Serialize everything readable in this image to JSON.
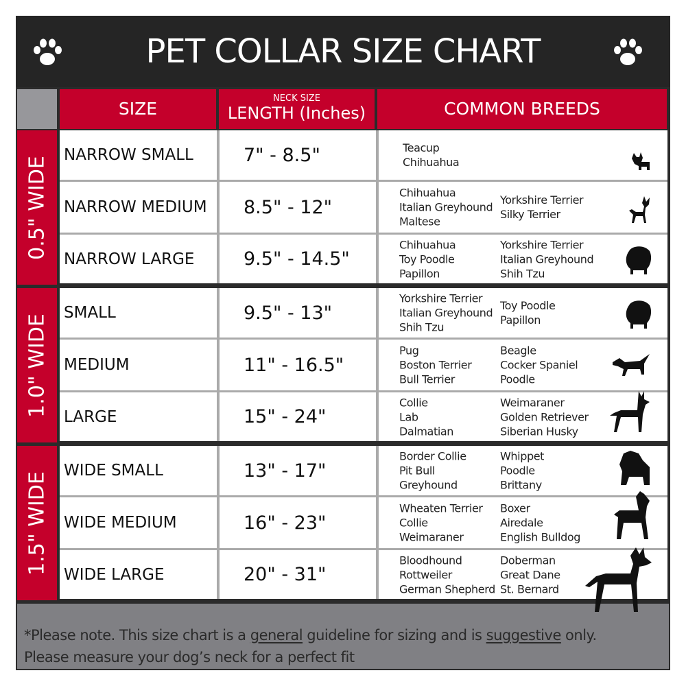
{
  "title": "PET COLLAR SIZE CHART",
  "header": {
    "size": "SIZE",
    "neck_size": "NECK SIZE",
    "length": "LENGTH (Inches)",
    "breeds": "COMMON BREEDS"
  },
  "colors": {
    "red": "#c4002b",
    "dark": "#252525",
    "gray": "#808084"
  },
  "groups": [
    {
      "label": "0.5\" WIDE",
      "rows": [
        {
          "size": "NARROW SMALL",
          "length": "7\" - 8.5\"",
          "breeds1": [
            "Teacup",
            "Chihuahua"
          ],
          "breeds2": [],
          "icon": "yorkie-silhouette-icon"
        },
        {
          "size": "NARROW MEDIUM",
          "length": "8.5\" - 12\"",
          "breeds1": [
            "Chihuahua",
            "Italian Greyhound",
            "Maltese"
          ],
          "breeds2": [
            "Yorkshire Terrier",
            "Silky Terrier"
          ],
          "icon": "chihuahua-silhouette-icon"
        },
        {
          "size": "NARROW LARGE",
          "length": "9.5\" - 14.5\"",
          "breeds1": [
            "Chihuahua",
            "Toy Poodle",
            "Papillon"
          ],
          "breeds2": [
            "Yorkshire Terrier",
            "Italian Greyhound",
            "Shih Tzu"
          ],
          "icon": "pomeranian-silhouette-icon"
        }
      ]
    },
    {
      "label": "1.0\" WIDE",
      "rows": [
        {
          "size": "SMALL",
          "length": "9.5\" - 13\"",
          "breeds1": [
            "Yorkshire Terrier",
            "Italian Greyhound",
            "Shih Tzu"
          ],
          "breeds2": [
            "Toy Poodle",
            "Papillon"
          ],
          "icon": "pomeranian-silhouette-icon"
        },
        {
          "size": "MEDIUM",
          "length": "11\" - 16.5\"",
          "breeds1": [
            "Pug",
            "Boston Terrier",
            "Bull Terrier"
          ],
          "breeds2": [
            "Beagle",
            "Cocker Spaniel",
            "Poodle"
          ],
          "icon": "dachshund-silhouette-icon"
        },
        {
          "size": "LARGE",
          "length": "15\" - 24\"",
          "breeds1": [
            "Collie",
            "Lab",
            "Dalmatian"
          ],
          "breeds2": [
            "Weimaraner",
            "Golden Retriever",
            "Siberian Husky"
          ],
          "icon": "shepherd-silhouette-icon"
        }
      ]
    },
    {
      "label": "1.5\" WIDE",
      "rows": [
        {
          "size": "WIDE SMALL",
          "length": "13\" - 17\"",
          "breeds1": [
            "Border Collie",
            "Pit Bull",
            "Greyhound"
          ],
          "breeds2": [
            "Whippet",
            "Poodle",
            "Brittany"
          ],
          "icon": "bulldog-silhouette-icon"
        },
        {
          "size": "WIDE MEDIUM",
          "length": "16\" - 23\"",
          "breeds1": [
            "Wheaten Terrier",
            "Collie",
            "Weimaraner"
          ],
          "breeds2": [
            "Boxer",
            "Airedale",
            "English Bulldog"
          ],
          "icon": "pitbull-silhouette-icon"
        },
        {
          "size": "WIDE LARGE",
          "length": "20\" - 31\"",
          "breeds1": [
            "Bloodhound",
            "Rottweiler",
            "German Shepherd"
          ],
          "breeds2": [
            "Doberman",
            "Great Dane",
            "St. Bernard"
          ],
          "icon": "doberman-silhouette-icon"
        }
      ]
    }
  ],
  "footer": {
    "prefix": "*Please note. This size chart is a ",
    "general": "general",
    "middle": " guideline for sizing and is ",
    "suggestive": "suggestive",
    "suffix": " only.",
    "line2": "Please measure your dog’s neck for a perfect fit"
  }
}
